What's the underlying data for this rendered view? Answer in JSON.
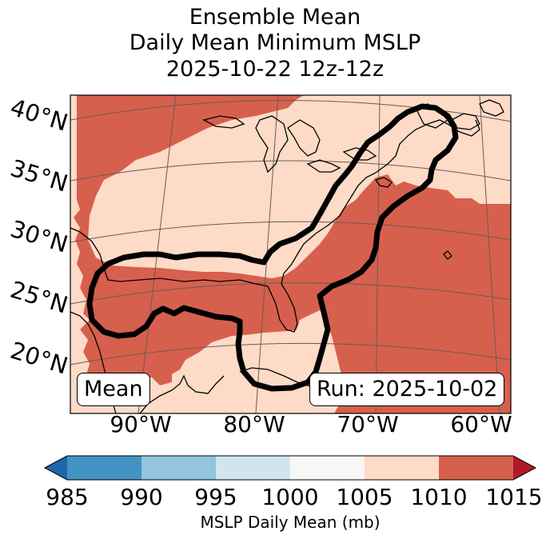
{
  "figure": {
    "title_lines": [
      "Ensemble Mean",
      "Daily Mean Minimum MSLP",
      "2025-10-22 12z-12z"
    ]
  },
  "map": {
    "latitude_labels": [
      "40°N",
      "35°N",
      "30°N",
      "25°N",
      "20°N"
    ],
    "longitude_labels": [
      "90°W",
      "80°W",
      "70°W",
      "60°W"
    ],
    "label_box_left": "Mean",
    "label_box_right": "Run: 2025-10-02",
    "colors": {
      "fill_1005_1010": "#fddbc7",
      "fill_1010_1015": "#d6604d",
      "contour": "#000000",
      "coastline": "#000000",
      "gridline": "#6b5a55"
    }
  },
  "colorbar": {
    "label": "MSLP Daily Mean (mb)",
    "ticks": [
      "985",
      "990",
      "995",
      "1000",
      "1005",
      "1010",
      "1015"
    ],
    "segments": [
      {
        "range": "985-990",
        "color": "#4393c3"
      },
      {
        "range": "990-995",
        "color": "#92c5de"
      },
      {
        "range": "995-1000",
        "color": "#d1e5f0"
      },
      {
        "range": "1000-1005",
        "color": "#f7f7f7"
      },
      {
        "range": "1005-1010",
        "color": "#fddbc7"
      },
      {
        "range": "1010-1015",
        "color": "#d6604d"
      }
    ],
    "extend_low_color": "#2166ac",
    "extend_high_color": "#b2182b"
  }
}
